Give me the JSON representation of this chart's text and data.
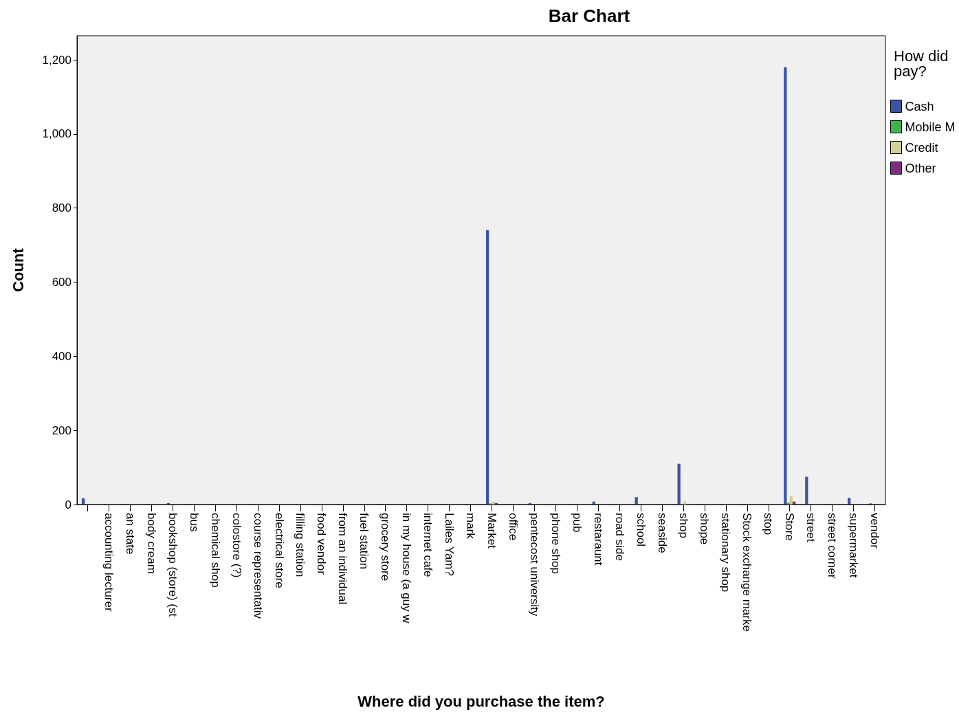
{
  "chart_data": {
    "type": "bar",
    "title": "Bar Chart",
    "xlabel": "Where did you purchase the item?",
    "ylabel": "Count",
    "legend_title": "How did pay?",
    "categories": [
      null,
      "accounting lecturer",
      "an state",
      "body cream",
      "bookshop (store) (st",
      "bus",
      "chemical shop",
      "colostore (?)",
      "course representativ",
      "electrical store",
      "filling station",
      "food vendor",
      "from an individual",
      "fuel station",
      "grocery store",
      "in my house (a guy w",
      "internet cafe",
      "Lailes Yam?",
      "mark",
      "Market",
      "office",
      "pentecost university",
      "phone shop",
      "pub",
      "restaraunt",
      "road side",
      "school",
      "seaside",
      "shop",
      "shope",
      "stationary shop",
      "Stock exchange marke",
      "stop",
      "Store",
      "street",
      "street corner",
      "supermarket",
      "vendor"
    ],
    "series": [
      {
        "name": "Cash",
        "color": "#3a53a4",
        "values": [
          17,
          1,
          1,
          2,
          4,
          1,
          1,
          1,
          1,
          1,
          1,
          1,
          1,
          1,
          2,
          1,
          1,
          1,
          2,
          740,
          1,
          4,
          1,
          1,
          8,
          1,
          20,
          1,
          110,
          1,
          1,
          1,
          1,
          1180,
          75,
          1,
          18,
          3
        ]
      },
      {
        "name": "Mobile M",
        "color": "#3bb44a",
        "values": [
          null,
          null,
          null,
          null,
          null,
          null,
          null,
          null,
          null,
          null,
          null,
          null,
          null,
          null,
          null,
          null,
          null,
          null,
          null,
          3,
          null,
          null,
          null,
          null,
          null,
          null,
          null,
          null,
          null,
          null,
          null,
          null,
          null,
          5,
          null,
          null,
          null,
          null
        ]
      },
      {
        "name": "Credit",
        "color": "#d5cf98",
        "values": [
          null,
          null,
          null,
          null,
          null,
          null,
          null,
          null,
          null,
          null,
          null,
          null,
          null,
          null,
          null,
          null,
          null,
          null,
          null,
          8,
          null,
          null,
          null,
          null,
          null,
          null,
          null,
          null,
          8,
          null,
          null,
          null,
          null,
          22,
          null,
          null,
          null,
          null
        ]
      },
      {
        "name": "Other",
        "color": "#7e2b83",
        "values": [
          null,
          null,
          null,
          null,
          null,
          null,
          null,
          null,
          null,
          null,
          null,
          null,
          null,
          null,
          null,
          null,
          null,
          null,
          null,
          4,
          null,
          null,
          null,
          null,
          null,
          null,
          null,
          null,
          null,
          null,
          null,
          null,
          null,
          8,
          null,
          null,
          null,
          null
        ]
      }
    ],
    "ylim": [
      0,
      1265
    ],
    "yticks": [
      0,
      200,
      400,
      600,
      800,
      {
        "value": 1000,
        "label": "1,000"
      },
      {
        "value": 1200,
        "label": "1,200"
      }
    ],
    "grid": false,
    "legend": "top right"
  }
}
